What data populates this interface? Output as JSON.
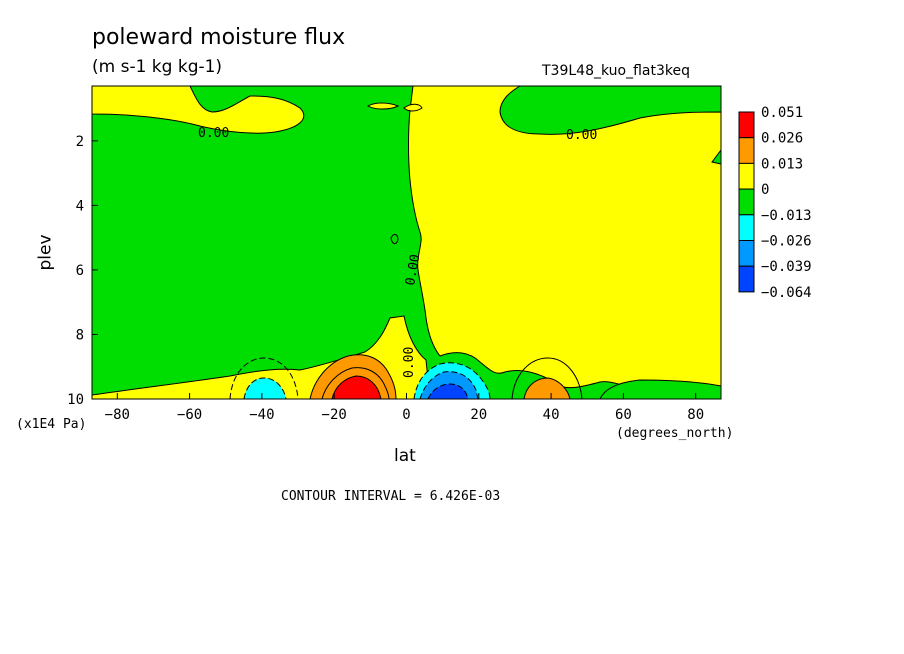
{
  "title": "poleward moisture flux",
  "subtitle": "(m s-1 kg kg-1)",
  "run_label": "T39L48_kuo_flat3keq",
  "contour_interval": "CONTOUR INTERVAL = 6.426E-03",
  "chart_data": {
    "type": "heatmap",
    "xlabel": "lat",
    "x_units": "(degrees_north)",
    "ylabel": "plev",
    "y_units": "(x1E4 Pa)",
    "xlim": [
      -87,
      87
    ],
    "ylim": [
      0.3,
      10
    ],
    "y_inverted": true,
    "x_ticks": [
      "-80",
      "-60",
      "-40",
      "-20",
      "0",
      "20",
      "40",
      "60",
      "80"
    ],
    "y_ticks": [
      "2",
      "4",
      "6",
      "8",
      "10"
    ],
    "contour_labels": [
      "0.00",
      "0.00",
      "0.00",
      "0.00"
    ],
    "colorbar": {
      "labels": [
        "0.051",
        "0.026",
        "0.013",
        "0",
        "−0.013",
        "−0.026",
        "−0.039",
        "−0.064"
      ],
      "colors": [
        "#ff0000",
        "#ff9900",
        "#ffff00",
        "#00dd00",
        "#00ffff",
        "#0099ff",
        "#0044ff"
      ]
    },
    "features": [
      {
        "name": "positive-max",
        "lat": -12,
        "plev": 9.8,
        "value": 0.051
      },
      {
        "name": "negative-min",
        "lat": 12,
        "plev": 9.8,
        "value": -0.064
      },
      {
        "name": "positive-secondary",
        "lat": 40,
        "plev": 9.8,
        "value": 0.026
      },
      {
        "name": "negative-secondary",
        "lat": -40,
        "plev": 9.8,
        "value": -0.026
      }
    ]
  }
}
